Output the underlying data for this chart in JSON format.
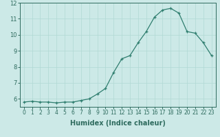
{
  "x_values": [
    0,
    1,
    2,
    3,
    4,
    5,
    6,
    7,
    8,
    9,
    10,
    11,
    12,
    13,
    14,
    15,
    16,
    17,
    18,
    19,
    20,
    21,
    22,
    23
  ],
  "y_values": [
    5.8,
    5.85,
    5.8,
    5.8,
    5.75,
    5.8,
    5.8,
    5.9,
    6.0,
    6.3,
    6.65,
    7.65,
    8.5,
    8.7,
    9.5,
    10.2,
    11.1,
    11.55,
    11.65,
    11.35,
    10.2,
    10.1,
    9.5,
    8.7
  ],
  "xlabel": "Humidex (Indice chaleur)",
  "ylabel": "",
  "xlim": [
    -0.5,
    23.5
  ],
  "ylim": [
    5.5,
    12.0
  ],
  "yticks": [
    6,
    7,
    8,
    9,
    10,
    11,
    12
  ],
  "xticks": [
    0,
    1,
    2,
    3,
    4,
    5,
    6,
    7,
    8,
    9,
    10,
    11,
    12,
    13,
    14,
    15,
    16,
    17,
    18,
    19,
    20,
    21,
    22,
    23
  ],
  "line_color": "#2e7d6e",
  "marker": "+",
  "bg_color": "#cce9e7",
  "grid_color": "#b0d8d4",
  "axis_color": "#2e6b5e",
  "tick_fontsize": 5.5,
  "xlabel_fontsize": 7.0,
  "linewidth": 0.9,
  "markersize": 3.5,
  "markeredgewidth": 0.9
}
